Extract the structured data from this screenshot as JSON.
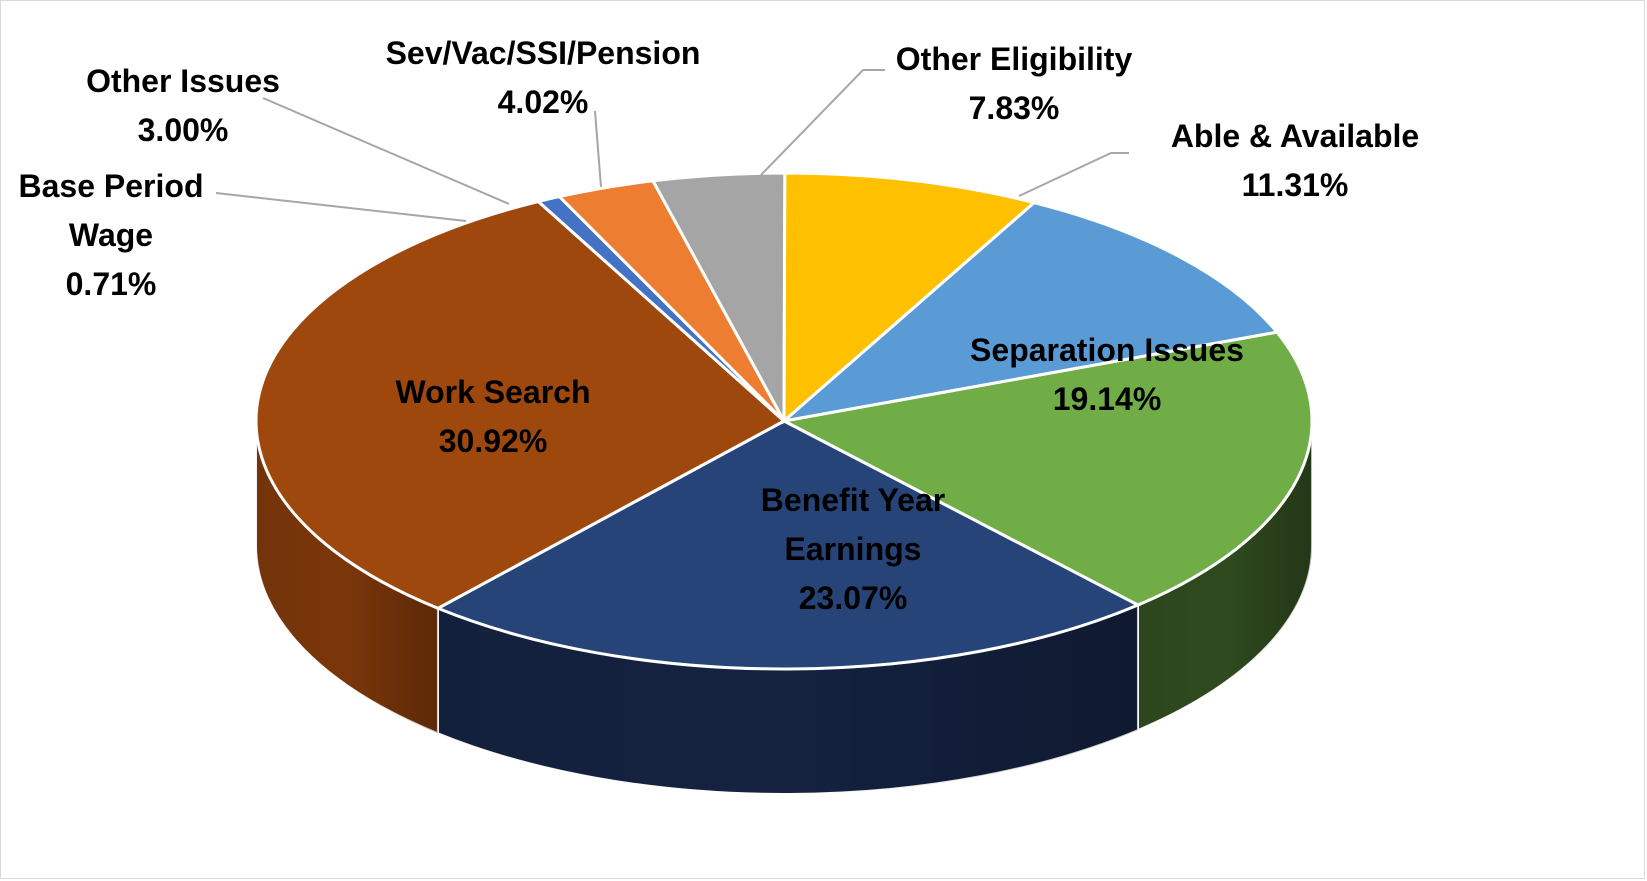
{
  "chart_data": {
    "type": "pie",
    "style": "3d",
    "title": "",
    "slices": [
      {
        "label": "Separation Issues",
        "label_lines": [
          "Separation Issues"
        ],
        "value": 19.14,
        "display": "19.14%",
        "color": "#70ad47",
        "side_color": "#2f4a1e"
      },
      {
        "label": "Benefit Year Earnings",
        "label_lines": [
          "Benefit Year",
          "Earnings"
        ],
        "value": 23.07,
        "display": "23.07%",
        "color": "#264478",
        "side_color": "#142240"
      },
      {
        "label": "Work Search",
        "label_lines": [
          "Work Search"
        ],
        "value": 30.92,
        "display": "30.92%",
        "color": "#9e480e",
        "side_color": "#7a360a"
      },
      {
        "label": "Base Period Wage",
        "label_lines": [
          "Base Period",
          "Wage"
        ],
        "value": 0.71,
        "display": "0.71%",
        "color": "#4472c4",
        "side_color": "#2f5597"
      },
      {
        "label": "Other Issues",
        "label_lines": [
          "Other Issues"
        ],
        "value": 3.0,
        "display": "3.00%",
        "color": "#ed7d31",
        "side_color": "#b35a1f"
      },
      {
        "label": "Sev/Vac/SSI/Pension",
        "label_lines": [
          "Sev/Vac/SSI/Pension"
        ],
        "value": 4.02,
        "display": "4.02%",
        "color": "#a5a5a5",
        "side_color": "#7a7a7a"
      },
      {
        "label": "Other Eligibility",
        "label_lines": [
          "Other Eligibility"
        ],
        "value": 7.83,
        "display": "7.83%",
        "color": "#ffc000",
        "side_color": "#c49000"
      },
      {
        "label": "Able & Available",
        "label_lines": [
          "Able & Available"
        ],
        "value": 11.31,
        "display": "11.31%",
        "color": "#5b9bd5",
        "side_color": "#3d7ab5"
      }
    ],
    "legend": "none",
    "data_labels": "category and percent"
  }
}
